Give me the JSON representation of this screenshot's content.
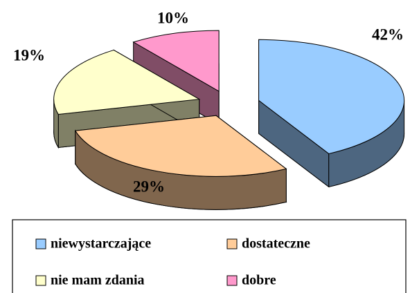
{
  "chart_data": {
    "type": "pie",
    "categories": [
      "niewystarczające",
      "dostateczne",
      "nie mam zdania",
      "dobre"
    ],
    "values": [
      42,
      29,
      19,
      10
    ],
    "value_labels": [
      "42%",
      "29%",
      "19%",
      "10%"
    ],
    "colors": [
      "#99ccff",
      "#ffcc99",
      "#ffffcc",
      "#ff99cc"
    ],
    "legend": "bottom"
  }
}
